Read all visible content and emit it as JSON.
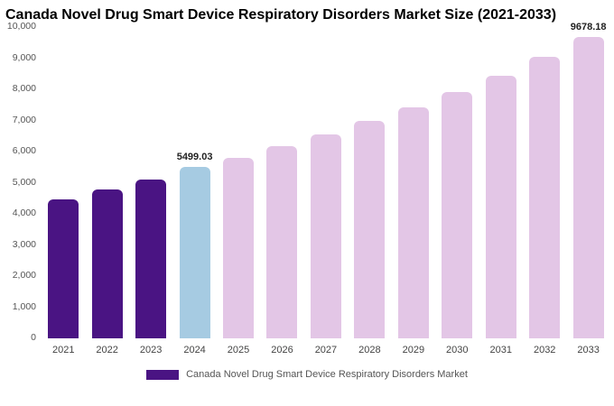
{
  "title": "Canada Novel Drug Smart Device Respiratory Disorders Market Size (2021-2033)",
  "legend": {
    "label": "Canada Novel Drug Smart Device Respiratory Disorders Market"
  },
  "colors": {
    "dark_purple": "#4a1483",
    "light_blue": "#a6cbe2",
    "pink": "#e3c6e6",
    "legend_swatch": "#4a1483"
  },
  "chart_data": {
    "type": "bar",
    "title": "Canada Novel Drug Smart Device Respiratory Disorders Market Size (2021-2033)",
    "xlabel": "",
    "ylabel": "",
    "ylim": [
      0,
      10000
    ],
    "ytick_step": 1000,
    "ytick_labels": [
      "0",
      "1,000",
      "2,000",
      "3,000",
      "4,000",
      "5,000",
      "6,000",
      "7,000",
      "8,000",
      "9,000",
      "10,000"
    ],
    "grid": false,
    "legend_position": "bottom",
    "categories": [
      "2021",
      "2022",
      "2023",
      "2024",
      "2025",
      "2026",
      "2027",
      "2028",
      "2029",
      "2030",
      "2031",
      "2032",
      "2033"
    ],
    "values": [
      4450,
      4780,
      5100,
      5499.03,
      5790,
      6160,
      6550,
      6990,
      7420,
      7900,
      8440,
      9040,
      9678.18
    ],
    "bar_colors": [
      "#4a1483",
      "#4a1483",
      "#4a1483",
      "#a6cbe2",
      "#e3c6e6",
      "#e3c6e6",
      "#e3c6e6",
      "#e3c6e6",
      "#e3c6e6",
      "#e3c6e6",
      "#e3c6e6",
      "#e3c6e6",
      "#e3c6e6"
    ],
    "annotations": [
      {
        "category": "2024",
        "text": "5499.03"
      },
      {
        "category": "2033",
        "text": "9678.18"
      }
    ]
  }
}
